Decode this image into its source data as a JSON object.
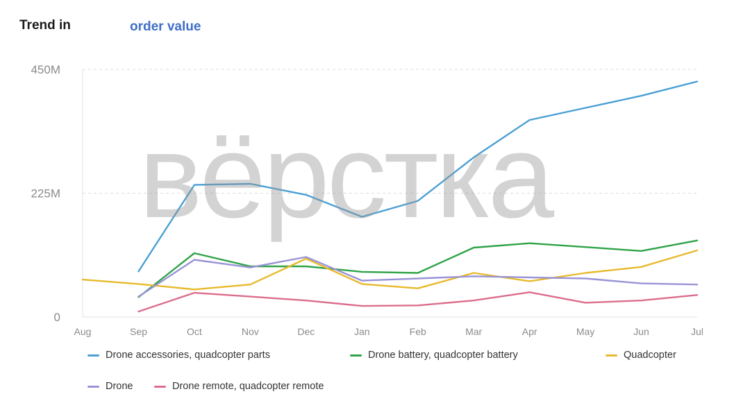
{
  "header": {
    "title": "Trend in",
    "metric_link": "order value"
  },
  "watermark": "вёрстка",
  "chart_data": {
    "type": "line",
    "categories": [
      "Aug",
      "Sep",
      "Oct",
      "Nov",
      "Dec",
      "Jan",
      "Feb",
      "Mar",
      "Apr",
      "May",
      "Jun",
      "Jul"
    ],
    "yticks": [
      {
        "value": 0,
        "label": "0"
      },
      {
        "value": 225,
        "label": "225M"
      },
      {
        "value": 450,
        "label": "450M"
      }
    ],
    "ylim": [
      0,
      450
    ],
    "yunit": "M",
    "grid": true,
    "legend_position": "bottom",
    "series": [
      {
        "name": "Drone accessories, quadcopter parts",
        "color": "#4a9fd4",
        "values": [
          null,
          83,
          240,
          242,
          222,
          182,
          211,
          290,
          358,
          380,
          402,
          428
        ]
      },
      {
        "name": "Drone battery, quadcopter battery",
        "color": "#2fa347",
        "values": [
          null,
          36,
          116,
          92,
          92,
          82,
          80,
          126,
          134,
          127,
          120,
          139
        ]
      },
      {
        "name": "Quadcopter",
        "color": "#e8b92c",
        "values": [
          68,
          60,
          50,
          59,
          106,
          60,
          52,
          80,
          65,
          80,
          91,
          121
        ]
      },
      {
        "name": "Drone",
        "color": "#9993d6",
        "values": [
          null,
          37,
          104,
          90,
          109,
          66,
          70,
          74,
          72,
          70,
          61,
          59
        ]
      },
      {
        "name": "Drone remote, quadcopter remote",
        "color": "#dc6d8c",
        "values": [
          null,
          10,
          44,
          37,
          30,
          20,
          21,
          30,
          45,
          26,
          30,
          40
        ]
      }
    ]
  }
}
